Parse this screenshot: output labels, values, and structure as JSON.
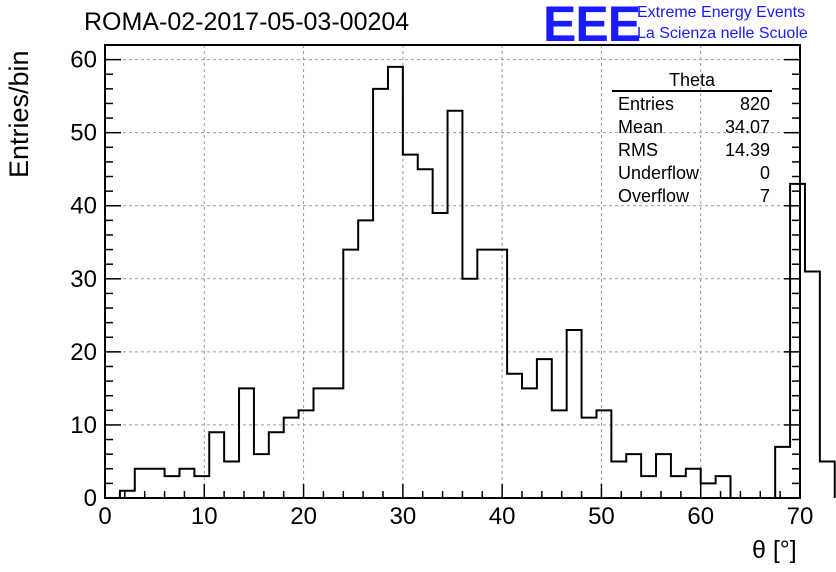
{
  "title": "ROMA-02-2017-05-03-00204",
  "logo": {
    "mark": "EEE",
    "line1": "Extreme Energy Events",
    "line2": "La Scienza nelle Scuole",
    "color": "#1a1aff"
  },
  "stats_box": {
    "title": "Theta",
    "rows": [
      {
        "label": "Entries",
        "value": "820"
      },
      {
        "label": "Mean",
        "value": "34.07"
      },
      {
        "label": "RMS",
        "value": "14.39"
      },
      {
        "label": "Underflow",
        "value": "0"
      },
      {
        "label": "Overflow",
        "value": "7"
      }
    ]
  },
  "chart_data": {
    "type": "bar",
    "histogram": true,
    "xlabel": "θ [°]",
    "ylabel": "Entries/bin",
    "xlim": [
      0,
      70
    ],
    "ylim": [
      0,
      62
    ],
    "xticks": [
      0,
      10,
      20,
      30,
      40,
      50,
      60,
      70
    ],
    "yticks": [
      0,
      10,
      20,
      30,
      40,
      50,
      60
    ],
    "grid": true,
    "bin_width": 1.5,
    "bin_start": 0,
    "values": [
      0,
      1,
      4,
      4,
      3,
      4,
      3,
      9,
      5,
      15,
      6,
      9,
      11,
      12,
      15,
      15,
      34,
      38,
      56,
      59,
      47,
      45,
      39,
      53,
      30,
      34,
      34,
      17,
      15,
      19,
      12,
      23,
      11,
      12,
      5,
      6,
      3,
      6,
      3,
      4,
      2,
      3,
      0,
      0,
      0,
      7,
      43,
      31,
      5
    ]
  }
}
